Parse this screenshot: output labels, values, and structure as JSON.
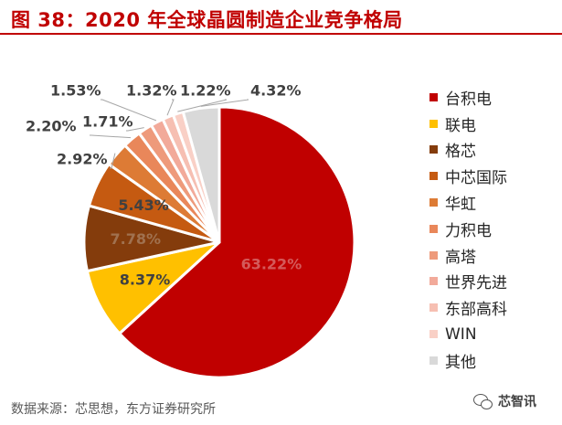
{
  "header": {
    "title": "图 38：2020 年全球晶圆制造企业竞争格局"
  },
  "chart_data": {
    "type": "pie",
    "title": "图 38：2020 年全球晶圆制造企业竞争格局",
    "start": "12 o'clock",
    "direction": "clockwise",
    "legend_position": "right",
    "slices": [
      {
        "name": "台积电",
        "value": 63.22,
        "label": "63.22%",
        "color": "#c00000"
      },
      {
        "name": "联电",
        "value": 8.37,
        "label": "8.37%",
        "color": "#ffc000"
      },
      {
        "name": "格芯",
        "value": 7.78,
        "label": "7.78%",
        "color": "#843c0c"
      },
      {
        "name": "中芯国际",
        "value": 5.43,
        "label": "5.43%",
        "color": "#c55a11"
      },
      {
        "name": "华虹",
        "value": 2.92,
        "label": "2.92%",
        "color": "#dd7b35"
      },
      {
        "name": "力积电",
        "value": 2.2,
        "label": "2.20%",
        "color": "#e9875a"
      },
      {
        "name": "高塔",
        "value": 1.71,
        "label": "1.71%",
        "color": "#ee9a7b"
      },
      {
        "name": "世界先进",
        "value": 1.53,
        "label": "1.53%",
        "color": "#f2aa9a"
      },
      {
        "name": "东部高科",
        "value": 1.32,
        "label": "1.32%",
        "color": "#f6bfb2"
      },
      {
        "name": "WIN",
        "value": 1.22,
        "label": "1.22%",
        "color": "#f9d0c6"
      },
      {
        "name": "其他",
        "value": 4.32,
        "label": "4.32%",
        "color": "#d9d9d9"
      }
    ]
  },
  "footer": {
    "source": "数据来源：芯思想，东方证券研究所",
    "watermark": "芯智讯"
  }
}
